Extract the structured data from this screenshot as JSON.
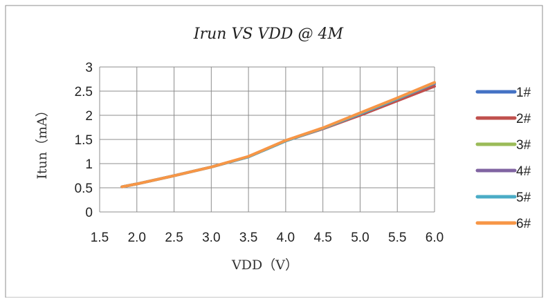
{
  "chart_data": {
    "type": "line",
    "title": "Irun VS VDD @ 4M",
    "xlabel": "VDD（V）",
    "ylabel": "Itun（mA）",
    "xlim": [
      1.5,
      6.0
    ],
    "ylim": [
      0,
      3
    ],
    "x_ticks": [
      "1.5",
      "2.0",
      "2.5",
      "3.0",
      "3.5",
      "4.0",
      "4.5",
      "5.0",
      "5.5",
      "6.0"
    ],
    "y_ticks": [
      "0",
      "0.5",
      "1",
      "1.5",
      "2",
      "2.5",
      "3"
    ],
    "grid": true,
    "legend_position": "right",
    "x": [
      1.8,
      2.0,
      2.5,
      3.0,
      3.5,
      4.0,
      4.5,
      5.0,
      5.5,
      6.0
    ],
    "series": [
      {
        "name": "1#",
        "color": "#4472C4",
        "values": [
          0.52,
          0.58,
          0.75,
          0.93,
          1.14,
          1.47,
          1.73,
          2.03,
          2.33,
          2.65
        ]
      },
      {
        "name": "2#",
        "color": "#C0504D",
        "values": [
          0.52,
          0.58,
          0.75,
          0.93,
          1.14,
          1.47,
          1.72,
          2.0,
          2.3,
          2.6
        ]
      },
      {
        "name": "3#",
        "color": "#9BBB59",
        "values": [
          0.52,
          0.58,
          0.75,
          0.93,
          1.14,
          1.47,
          1.73,
          2.03,
          2.34,
          2.66
        ]
      },
      {
        "name": "4#",
        "color": "#8064A2",
        "values": [
          0.52,
          0.58,
          0.75,
          0.93,
          1.14,
          1.47,
          1.73,
          2.03,
          2.34,
          2.66
        ]
      },
      {
        "name": "5#",
        "color": "#4BACC6",
        "values": [
          0.52,
          0.58,
          0.75,
          0.93,
          1.14,
          1.47,
          1.73,
          2.03,
          2.34,
          2.67
        ]
      },
      {
        "name": "6#",
        "color": "#F79646",
        "values": [
          0.52,
          0.58,
          0.75,
          0.93,
          1.15,
          1.48,
          1.74,
          2.05,
          2.36,
          2.68
        ]
      }
    ]
  }
}
